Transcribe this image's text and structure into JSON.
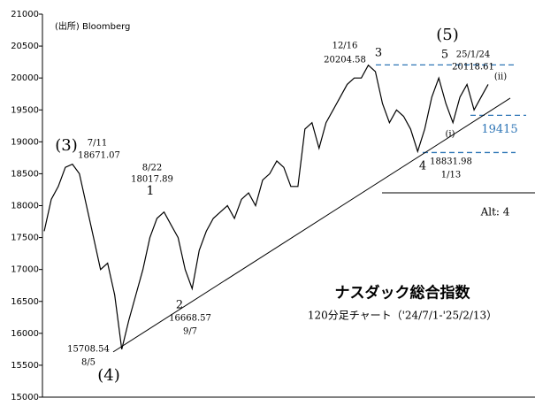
{
  "chart_data": {
    "type": "line",
    "title": "ナスダック総合指数",
    "subtitle": "120分足チャート（'24/7/1-'25/2/13）",
    "source": "(出所) Bloomberg",
    "color": "#000000",
    "values": [
      17600,
      18100,
      18300,
      18600,
      18650,
      18500,
      18000,
      17500,
      17000,
      17100,
      16600,
      15750,
      16200,
      16600,
      17000,
      17500,
      17800,
      17900,
      17700,
      17500,
      17000,
      16700,
      17300,
      17600,
      17800,
      17900,
      18000,
      17800,
      18100,
      18200,
      18000,
      18400,
      18500,
      18700,
      18600,
      18300,
      18300,
      19200,
      19300,
      18900,
      19300,
      19500,
      19700,
      19900,
      20000,
      20000,
      20200,
      20100,
      19600,
      19300,
      19500,
      19400,
      19200,
      18850,
      19200,
      19700,
      20000,
      19600,
      19300,
      19700,
      19900,
      19500,
      19700,
      19900
    ],
    "ylim": [
      15000,
      21000
    ],
    "yticks": [
      15000,
      15500,
      16000,
      16500,
      17000,
      17500,
      18000,
      18500,
      19000,
      19500,
      20000,
      20500,
      21000
    ],
    "grid": false,
    "trendline": {
      "values": [
        15708.54,
        19684
      ]
    },
    "reference_lines": [
      {
        "value": 20204.58,
        "color": "#2e75b6"
      },
      {
        "value": 19415,
        "color": "#2e75b6"
      },
      {
        "value": 18831.98,
        "color": "#2e75b6"
      }
    ],
    "annotations": [
      "(3)",
      "7/11",
      "18671.07",
      "8/22",
      "18017.89",
      "1",
      "2",
      "16668.57",
      "9/7",
      "15708.54",
      "8/5",
      "(4)",
      "12/16",
      "20204.58",
      "3",
      "(5)",
      "5",
      "25/1/24",
      "20118.61",
      "(ii)",
      "(i)",
      "4",
      "18831.98",
      "1/13",
      "Alt: 4"
    ]
  }
}
